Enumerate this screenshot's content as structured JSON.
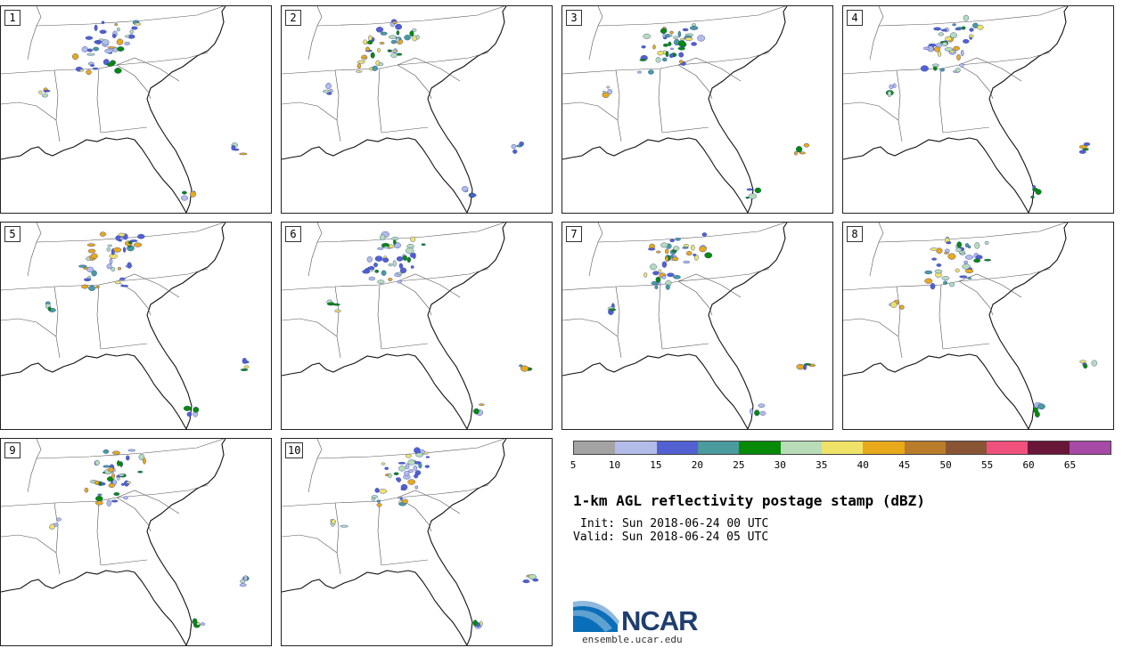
{
  "figure": {
    "title": "1-km AGL reflectivity postage stamp (dBZ)",
    "init": "Init: Sun 2018-06-24 00 UTC",
    "valid": "Valid: Sun 2018-06-24 05 UTC",
    "url": "ensemble.ucar.edu",
    "logo_text": "NCAR"
  },
  "members": [
    "1",
    "2",
    "3",
    "4",
    "5",
    "6",
    "7",
    "8",
    "9",
    "10"
  ],
  "colorbar": {
    "ticks": [
      "5",
      "10",
      "15",
      "20",
      "25",
      "30",
      "35",
      "40",
      "45",
      "50",
      "55",
      "60",
      "65"
    ],
    "colors": [
      "#a3a3a3",
      "#b3bce9",
      "#5360d2",
      "#4a9a9e",
      "#078a07",
      "#b7dcb7",
      "#efe269",
      "#e8a91b",
      "#b97c2b",
      "#8a5535",
      "#ef507c",
      "#6a1638",
      "#a64aa6"
    ]
  },
  "chart_data": {
    "type": "heatmap",
    "title": "1-km AGL reflectivity postage stamp (dBZ)",
    "variable": "reflectivity",
    "units": "dBZ",
    "levels": [
      5,
      10,
      15,
      20,
      25,
      30,
      35,
      40,
      45,
      50,
      55,
      60,
      65
    ],
    "members": 10,
    "init": "Sun 2018-06-24 00 UTC",
    "valid": "Sun 2018-06-24 05 UTC"
  }
}
